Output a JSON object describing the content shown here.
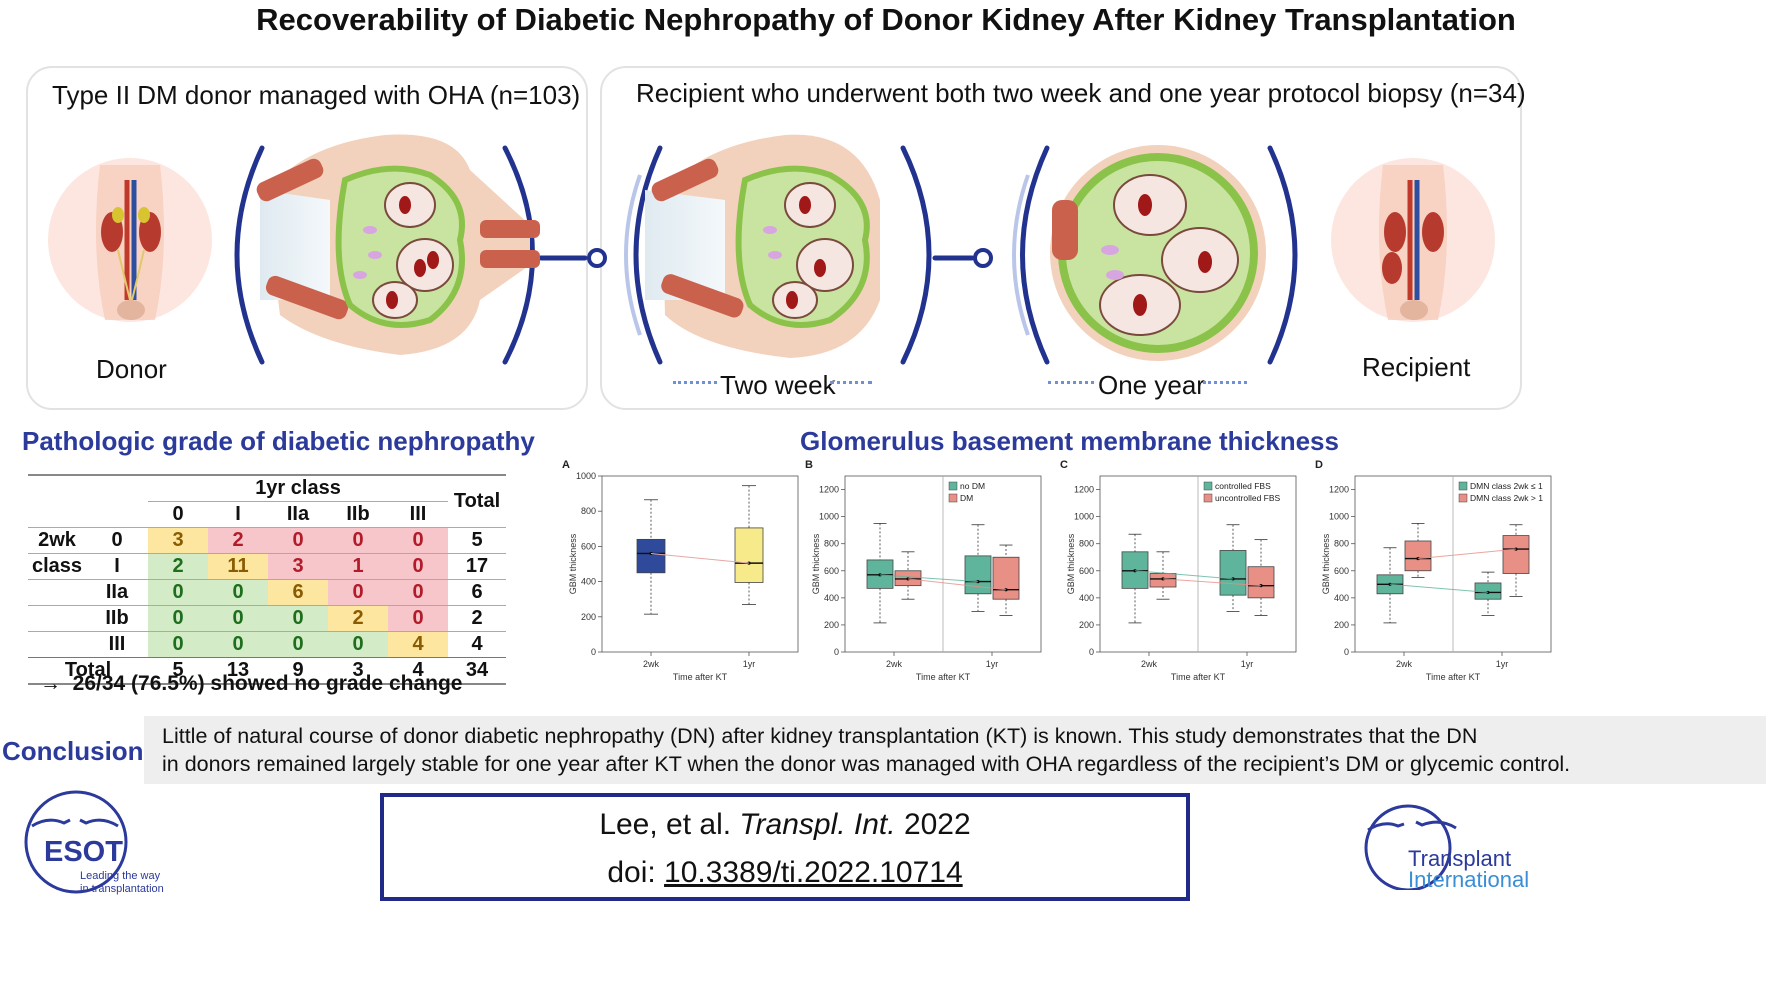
{
  "title": "Recoverability of Diabetic Nephropathy of Donor Kidney After Kidney Transplantation",
  "left_panel": {
    "title": "Type II DM donor managed with OHA (n=103)",
    "donor_label": "Donor"
  },
  "right_panel": {
    "title": "Recipient who underwent both two week and one year protocol biopsy (n=34)",
    "two_week_label": "Two week",
    "one_year_label": "One year",
    "recipient_label": "Recipient"
  },
  "pathologic": {
    "title": "Pathologic grade of diabetic nephropathy",
    "col_group_label": "1yr class",
    "row_group_label_1": "2wk",
    "row_group_label_2": "class",
    "total_label": "Total",
    "columns": [
      "0",
      "I",
      "IIa",
      "IIb",
      "III"
    ],
    "rows": [
      {
        "label": "0",
        "cells": [
          "3",
          "2",
          "0",
          "0",
          "0"
        ],
        "total": "5"
      },
      {
        "label": "I",
        "cells": [
          "2",
          "11",
          "3",
          "1",
          "0"
        ],
        "total": "17"
      },
      {
        "label": "IIa",
        "cells": [
          "0",
          "0",
          "6",
          "0",
          "0"
        ],
        "total": "6"
      },
      {
        "label": "IIb",
        "cells": [
          "0",
          "0",
          "0",
          "2",
          "0"
        ],
        "total": "2"
      },
      {
        "label": "III",
        "cells": [
          "0",
          "0",
          "0",
          "0",
          "4"
        ],
        "total": "4"
      }
    ],
    "col_totals": [
      "5",
      "13",
      "9",
      "3",
      "4"
    ],
    "grand_total": "34",
    "summary": "→  26/34 (76.5%) showed no grade change"
  },
  "gbm": {
    "title": "Glomerulus basement membrane thickness"
  },
  "chart_data": [
    {
      "type": "box",
      "panel": "A",
      "ylabel": "GBM thickness",
      "xlabel": "Time after KT",
      "categories": [
        "2wk",
        "1yr"
      ],
      "ylim": [
        0,
        1000
      ],
      "yticks": [
        0,
        200,
        400,
        600,
        800,
        1000
      ],
      "series": [
        {
          "color": "#2f4a9a",
          "boxes": [
            {
              "min": 215,
              "q1": 450,
              "median": 560,
              "q3": 640,
              "max": 865
            }
          ]
        },
        {
          "color": "#f7ea8a",
          "boxes": [
            {
              "min": 270,
              "q1": 395,
              "median": 505,
              "q3": 705,
              "max": 945
            }
          ]
        }
      ]
    },
    {
      "type": "box",
      "panel": "B",
      "ylabel": "GBM thickness",
      "xlabel": "Time after KT",
      "categories": [
        "2wk",
        "1yr"
      ],
      "ylim": [
        0,
        1300
      ],
      "yticks": [
        0,
        200,
        400,
        600,
        800,
        1000,
        1200
      ],
      "series": [
        {
          "name": "no DM",
          "color": "#5fb59b",
          "boxes": [
            {
              "min": 215,
              "q1": 470,
              "median": 570,
              "q3": 680,
              "max": 950
            },
            {
              "min": 300,
              "q1": 430,
              "median": 520,
              "q3": 710,
              "max": 940
            }
          ]
        },
        {
          "name": "DM",
          "color": "#e88f86",
          "boxes": [
            {
              "min": 390,
              "q1": 490,
              "median": 540,
              "q3": 600,
              "max": 740
            },
            {
              "min": 270,
              "q1": 390,
              "median": 460,
              "q3": 700,
              "max": 790
            }
          ]
        }
      ]
    },
    {
      "type": "box",
      "panel": "C",
      "ylabel": "GBM thickness",
      "xlabel": "Time after KT",
      "categories": [
        "2wk",
        "1yr"
      ],
      "ylim": [
        0,
        1300
      ],
      "yticks": [
        0,
        200,
        400,
        600,
        800,
        1000,
        1200
      ],
      "series": [
        {
          "name": "controlled FBS",
          "color": "#5fb59b",
          "boxes": [
            {
              "min": 215,
              "q1": 470,
              "median": 600,
              "q3": 740,
              "max": 870
            },
            {
              "min": 300,
              "q1": 420,
              "median": 540,
              "q3": 750,
              "max": 940
            }
          ]
        },
        {
          "name": "uncontrolled FBS",
          "color": "#e88f86",
          "boxes": [
            {
              "min": 390,
              "q1": 480,
              "median": 540,
              "q3": 580,
              "max": 740
            },
            {
              "min": 270,
              "q1": 400,
              "median": 490,
              "q3": 630,
              "max": 830
            }
          ]
        }
      ]
    },
    {
      "type": "box",
      "panel": "D",
      "ylabel": "GBM thickness",
      "xlabel": "Time after KT",
      "categories": [
        "2wk",
        "1yr"
      ],
      "ylim": [
        0,
        1300
      ],
      "yticks": [
        0,
        200,
        400,
        600,
        800,
        1000,
        1200
      ],
      "series": [
        {
          "name": "DMN class 2wk ≤ 1",
          "color": "#5fb59b",
          "boxes": [
            {
              "min": 215,
              "q1": 430,
              "median": 500,
              "q3": 570,
              "max": 770
            },
            {
              "min": 270,
              "q1": 390,
              "median": 440,
              "q3": 510,
              "max": 590
            }
          ]
        },
        {
          "name": "DMN class 2wk > 1",
          "color": "#e88f86",
          "boxes": [
            {
              "min": 550,
              "q1": 600,
              "median": 690,
              "q3": 820,
              "max": 950
            },
            {
              "min": 410,
              "q1": 580,
              "median": 760,
              "q3": 860,
              "max": 940
            }
          ]
        }
      ]
    }
  ],
  "conclusion": {
    "label": "Conclusion",
    "line1": "Little of natural course of donor diabetic nephropathy (DN) after kidney transplantation (KT) is known. This study demonstrates that the DN",
    "line2": "in donors remained largely stable for one year after KT when the donor was managed with OHA regardless of the recipient’s DM or glycemic control."
  },
  "citation": {
    "authors": "Lee, et al.",
    "journal": "Transpl. Int.",
    "year": "2022",
    "doi_prefix": "doi:",
    "doi": "10.3389/ti.2022.10714"
  },
  "esot": {
    "name": "ESOT",
    "tagline1": "Leading the way",
    "tagline2": "in transplantation"
  },
  "ti": {
    "line1": "Transplant",
    "line2": "International"
  },
  "colors": {
    "accent_blue": "#2b3a9b",
    "bracket_blue": "#22338f",
    "green_cell": "#d3ecc7",
    "yellow_cell": "#fde7a0",
    "red_cell": "#f6c6ca"
  }
}
